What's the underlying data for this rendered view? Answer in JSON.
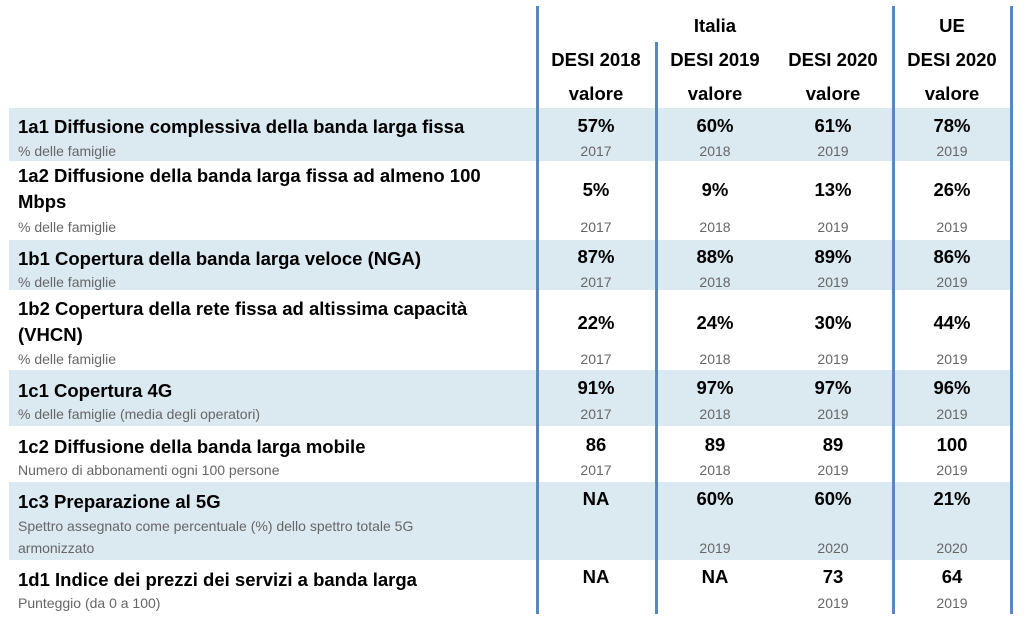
{
  "header": {
    "italia_label": "Italia",
    "ue_label": "UE",
    "columns": [
      {
        "edition": "DESI 2018",
        "unit": "valore"
      },
      {
        "edition": "DESI 2019",
        "unit": "valore"
      },
      {
        "edition": "DESI 2020",
        "unit": "valore"
      },
      {
        "edition": "DESI 2020",
        "unit": "valore"
      }
    ]
  },
  "rows": [
    {
      "title": "1a1 Diffusione complessiva della banda larga fissa",
      "subtitle": "% delle famiglie",
      "values": [
        "57%",
        "60%",
        "61%",
        "78%"
      ],
      "years": [
        "2017",
        "2018",
        "2019",
        "2019"
      ]
    },
    {
      "title_line1": "1a2 Diffusione della banda larga fissa ad almeno 100",
      "title_line2": "Mbps",
      "subtitle": "% delle famiglie",
      "values": [
        "5%",
        "9%",
        "13%",
        "26%"
      ],
      "years": [
        "2017",
        "2018",
        "2019",
        "2019"
      ]
    },
    {
      "title": "1b1 Copertura della banda larga veloce (NGA)",
      "subtitle": "% delle famiglie",
      "values": [
        "87%",
        "88%",
        "89%",
        "86%"
      ],
      "years": [
        "2017",
        "2018",
        "2019",
        "2019"
      ]
    },
    {
      "title_line1": "1b2 Copertura della rete fissa ad altissima capacità",
      "title_line2": "(VHCN)",
      "subtitle": "% delle famiglie",
      "values": [
        "22%",
        "24%",
        "30%",
        "44%"
      ],
      "years": [
        "2017",
        "2018",
        "2019",
        "2019"
      ]
    },
    {
      "title": "1c1 Copertura 4G",
      "subtitle": "% delle famiglie (media degli operatori)",
      "values": [
        "91%",
        "97%",
        "97%",
        "96%"
      ],
      "years": [
        "2017",
        "2018",
        "2019",
        "2019"
      ]
    },
    {
      "title": "1c2 Diffusione della banda larga mobile",
      "subtitle": "Numero di abbonamenti ogni 100 persone",
      "values": [
        "86",
        "89",
        "89",
        "100"
      ],
      "years": [
        "2017",
        "2018",
        "2019",
        "2019"
      ]
    },
    {
      "title": "1c3 Preparazione al 5G",
      "subtitle_line1": "Spettro assegnato come percentuale (%) dello spettro totale 5G",
      "subtitle_line2": "armonizzato",
      "values": [
        "NA",
        "60%",
        "60%",
        "21%"
      ],
      "years": [
        "",
        "2019",
        "2020",
        "2020"
      ]
    },
    {
      "title": "1d1 Indice dei prezzi dei servizi a banda larga",
      "subtitle": "Punteggio (da 0 a 100)",
      "values": [
        "NA",
        "NA",
        "73",
        "64"
      ],
      "years": [
        "",
        "",
        "2019",
        "2019"
      ]
    }
  ]
}
